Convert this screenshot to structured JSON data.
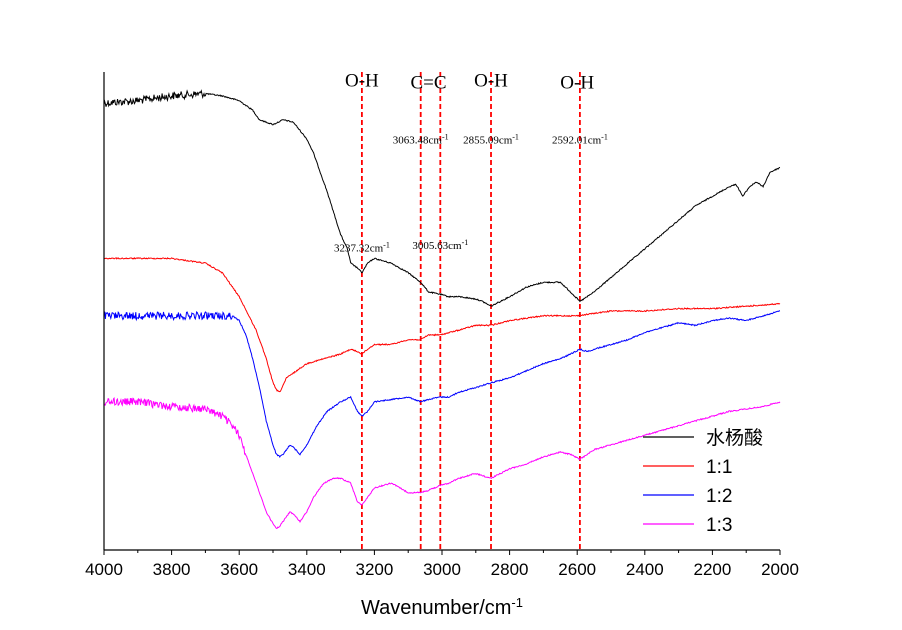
{
  "chart_data": {
    "type": "line",
    "xlabel": "Wavenumber/cm",
    "xlabel_sup": "-1",
    "xlim": [
      4000,
      2000
    ],
    "x_ticks": [
      "4000",
      "3800",
      "3600",
      "3400",
      "3200",
      "3000",
      "2800",
      "2600",
      "2400",
      "2200",
      "2000"
    ],
    "x_tick_values": [
      4000,
      3800,
      3600,
      3400,
      3200,
      3000,
      2800,
      2600,
      2400,
      2200,
      2000
    ],
    "ylim": [
      0,
      100
    ],
    "y_ticks_shown": false,
    "grid": false,
    "legend_position": "bottom-right",
    "series": [
      {
        "name": "水杨酸",
        "color": "#000000",
        "noise_region": [
          3700,
          4000
        ],
        "x": [
          4000,
          3900,
          3800,
          3700,
          3650,
          3600,
          3560,
          3540,
          3500,
          3470,
          3440,
          3400,
          3380,
          3340,
          3300,
          3280,
          3270,
          3250,
          3237,
          3220,
          3200,
          3150,
          3100,
          3063,
          3040,
          3005,
          2980,
          2950,
          2900,
          2880,
          2855,
          2800,
          2750,
          2700,
          2650,
          2620,
          2592,
          2570,
          2550,
          2500,
          2450,
          2400,
          2350,
          2300,
          2250,
          2200,
          2150,
          2130,
          2110,
          2090,
          2070,
          2050,
          2030,
          2000
        ],
        "y": [
          93.5,
          94,
          95,
          95.5,
          95,
          94,
          92,
          90,
          89,
          90,
          89.5,
          86,
          83,
          75,
          66,
          63,
          60,
          59,
          58,
          60,
          61,
          60,
          58,
          56,
          54,
          53.5,
          53,
          53,
          52.5,
          52,
          51,
          53,
          55,
          56,
          56,
          54,
          52,
          53,
          54,
          57,
          60,
          63,
          66,
          69,
          72,
          74,
          76,
          76.5,
          74,
          76,
          77,
          76,
          79,
          80
        ]
      },
      {
        "name": "1:1",
        "color": "#ff0000",
        "noise_region": null,
        "x": [
          4000,
          3900,
          3800,
          3700,
          3650,
          3600,
          3550,
          3520,
          3500,
          3490,
          3480,
          3460,
          3450,
          3420,
          3400,
          3350,
          3300,
          3270,
          3250,
          3237,
          3220,
          3200,
          3150,
          3100,
          3063,
          3040,
          3005,
          2950,
          2900,
          2855,
          2800,
          2700,
          2600,
          2500,
          2400,
          2300,
          2200,
          2100,
          2000
        ],
        "y": [
          61,
          61,
          61,
          60,
          58,
          53,
          46,
          40,
          35,
          33.5,
          33,
          36,
          36.5,
          38,
          39,
          40,
          41,
          42,
          41.5,
          41,
          42,
          43,
          43,
          44,
          44,
          45,
          45,
          46,
          47,
          47,
          48,
          49,
          49,
          50,
          50,
          50.5,
          50.5,
          51,
          51.5
        ]
      },
      {
        "name": "1:2",
        "color": "#0000ff",
        "noise_region": [
          3620,
          4000
        ],
        "x": [
          4000,
          3900,
          3800,
          3700,
          3650,
          3620,
          3600,
          3580,
          3560,
          3540,
          3520,
          3500,
          3490,
          3480,
          3470,
          3450,
          3440,
          3420,
          3400,
          3370,
          3340,
          3300,
          3270,
          3250,
          3237,
          3220,
          3200,
          3150,
          3100,
          3063,
          3040,
          3005,
          2980,
          2950,
          2900,
          2855,
          2800,
          2750,
          2700,
          2650,
          2620,
          2592,
          2570,
          2550,
          2500,
          2450,
          2400,
          2350,
          2300,
          2250,
          2200,
          2150,
          2100,
          2050,
          2000
        ],
        "y": [
          49,
          49,
          49,
          49,
          49,
          49,
          48,
          45,
          40,
          34,
          27,
          22,
          20,
          19.5,
          20,
          22,
          21.5,
          20,
          22,
          26,
          29,
          31,
          32,
          29,
          28,
          29,
          31,
          31.5,
          32,
          31,
          31.5,
          32,
          32,
          33,
          34,
          35,
          36,
          37.5,
          39,
          40,
          41,
          42,
          41.5,
          42,
          43,
          44,
          45.5,
          46.5,
          47.5,
          47,
          48,
          48.5,
          48,
          49,
          50
        ]
      },
      {
        "name": "1:3",
        "color": "#ff00ff",
        "noise_region": [
          3580,
          4000
        ],
        "x": [
          4000,
          3900,
          3800,
          3700,
          3650,
          3620,
          3600,
          3580,
          3560,
          3540,
          3520,
          3500,
          3490,
          3480,
          3470,
          3450,
          3440,
          3420,
          3400,
          3380,
          3350,
          3320,
          3300,
          3270,
          3250,
          3237,
          3220,
          3200,
          3150,
          3100,
          3063,
          3040,
          3005,
          2980,
          2950,
          2900,
          2855,
          2800,
          2750,
          2700,
          2650,
          2620,
          2592,
          2570,
          2550,
          2500,
          2450,
          2400,
          2350,
          2300,
          2250,
          2200,
          2150,
          2100,
          2050,
          2000
        ],
        "y": [
          31,
          31,
          30,
          29.5,
          28,
          26,
          24,
          20,
          16,
          12,
          8,
          5.5,
          4.5,
          5,
          6,
          8,
          7.5,
          6,
          8,
          11,
          14,
          15,
          15,
          14,
          10,
          9.5,
          11,
          13,
          14,
          12,
          12,
          12.5,
          13.5,
          14,
          15,
          16,
          15,
          17,
          18,
          19.5,
          20.5,
          20,
          19,
          20,
          21,
          22,
          23,
          24,
          25,
          26,
          27,
          28,
          29,
          29.5,
          30,
          31
        ]
      }
    ],
    "vlines": [
      {
        "x": 3237,
        "color": "#ff0000"
      },
      {
        "x": 3063,
        "color": "#ff0000"
      },
      {
        "x": 3005,
        "color": "#ff0000"
      },
      {
        "x": 2855,
        "color": "#ff0000"
      },
      {
        "x": 2592,
        "color": "#ff0000"
      }
    ],
    "annotations": [
      {
        "text": "O-H",
        "kind": "band",
        "x": 3237,
        "y": 97
      },
      {
        "text": "C=C",
        "kind": "band",
        "x": 3040,
        "y": 96.5
      },
      {
        "text": "O-H",
        "kind": "band",
        "x": 2855,
        "y": 97
      },
      {
        "text": "O-H",
        "kind": "band",
        "x": 2600,
        "y": 96.5
      },
      {
        "text": "3063.48cm",
        "sup": "-1",
        "kind": "peak",
        "x": 3063,
        "y": 85
      },
      {
        "text": "2855.09cm",
        "sup": "-1",
        "kind": "peak",
        "x": 2855,
        "y": 85
      },
      {
        "text": "2592.01cm",
        "sup": "-1",
        "kind": "peak",
        "x": 2592,
        "y": 85
      },
      {
        "text": "3237.32cm",
        "sup": "-1",
        "kind": "peak",
        "x": 3237,
        "y": 62.5
      },
      {
        "text": "3005.63cm",
        "sup": "-1",
        "kind": "peak",
        "x": 3005,
        "y": 63
      }
    ]
  }
}
